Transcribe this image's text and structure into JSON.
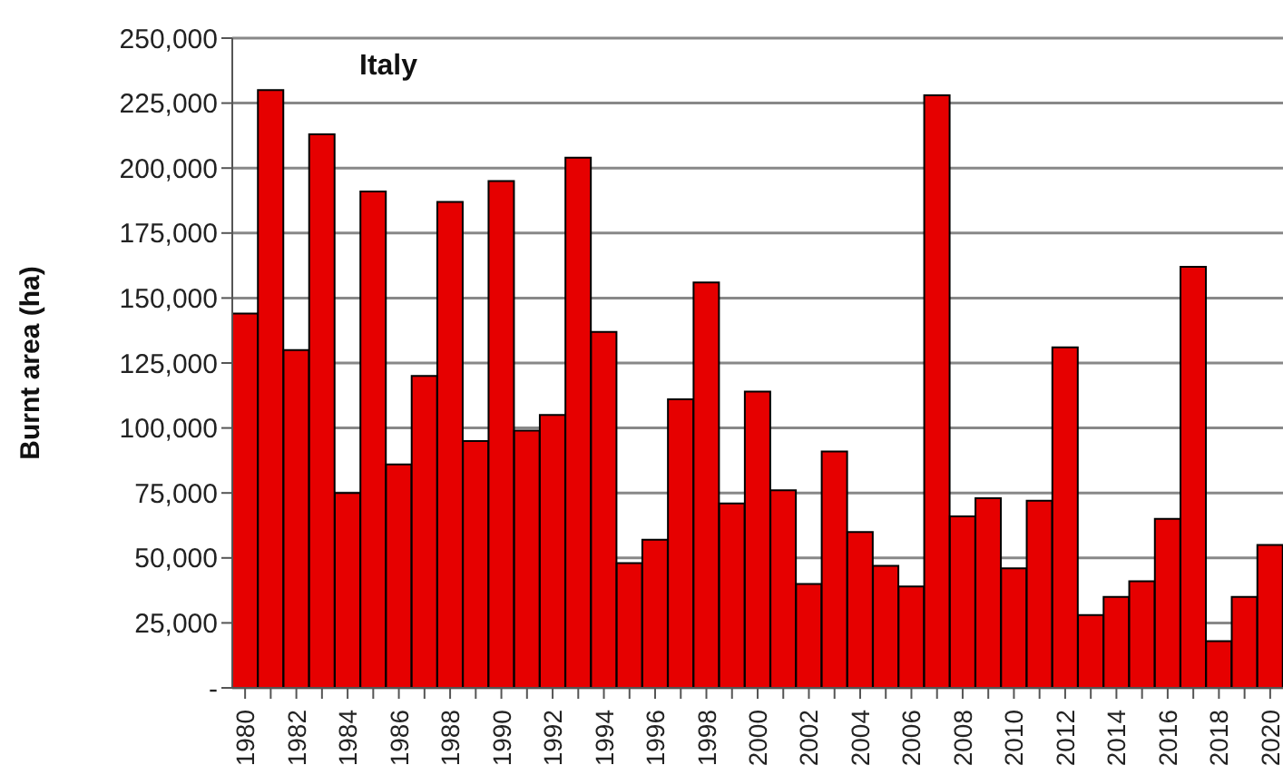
{
  "chart_data": {
    "type": "bar",
    "title": "Italy",
    "ylabel": "Burnt area (ha)",
    "categories": [
      "1980",
      null,
      "1982",
      null,
      "1984",
      null,
      "1986",
      null,
      "1988",
      null,
      "1990",
      null,
      "1992",
      null,
      "1994",
      null,
      "1996",
      null,
      "1998",
      null,
      "2000",
      null,
      "2002",
      null,
      "2004",
      null,
      "2006",
      null,
      "2008",
      null,
      "2010",
      null,
      "2012",
      null,
      "2014",
      null,
      "2016",
      null,
      "2018",
      null,
      "2020"
    ],
    "values": [
      144000,
      230000,
      130000,
      213000,
      75000,
      191000,
      86000,
      120000,
      187000,
      95000,
      195000,
      99000,
      105000,
      204000,
      137000,
      48000,
      57000,
      111000,
      156000,
      71000,
      114000,
      76000,
      40000,
      91000,
      60000,
      47000,
      39000,
      228000,
      66000,
      73000,
      46000,
      72000,
      131000,
      28000,
      35000,
      41000,
      65000,
      162000,
      18000,
      35000,
      55000
    ],
    "color": "#e60000",
    "ylim": [
      0,
      250000
    ],
    "yticks": [
      {
        "value": 0,
        "label": "-"
      },
      {
        "value": 25000,
        "label": "25,000"
      },
      {
        "value": 50000,
        "label": "50,000"
      },
      {
        "value": 75000,
        "label": "75,000"
      },
      {
        "value": 100000,
        "label": "100,000"
      },
      {
        "value": 125000,
        "label": "125,000"
      },
      {
        "value": 150000,
        "label": "150,000"
      },
      {
        "value": 175000,
        "label": "175,000"
      },
      {
        "value": 200000,
        "label": "200,000"
      },
      {
        "value": 225000,
        "label": "225,000"
      },
      {
        "value": 250000,
        "label": "250,000"
      }
    ],
    "grid": "y"
  }
}
